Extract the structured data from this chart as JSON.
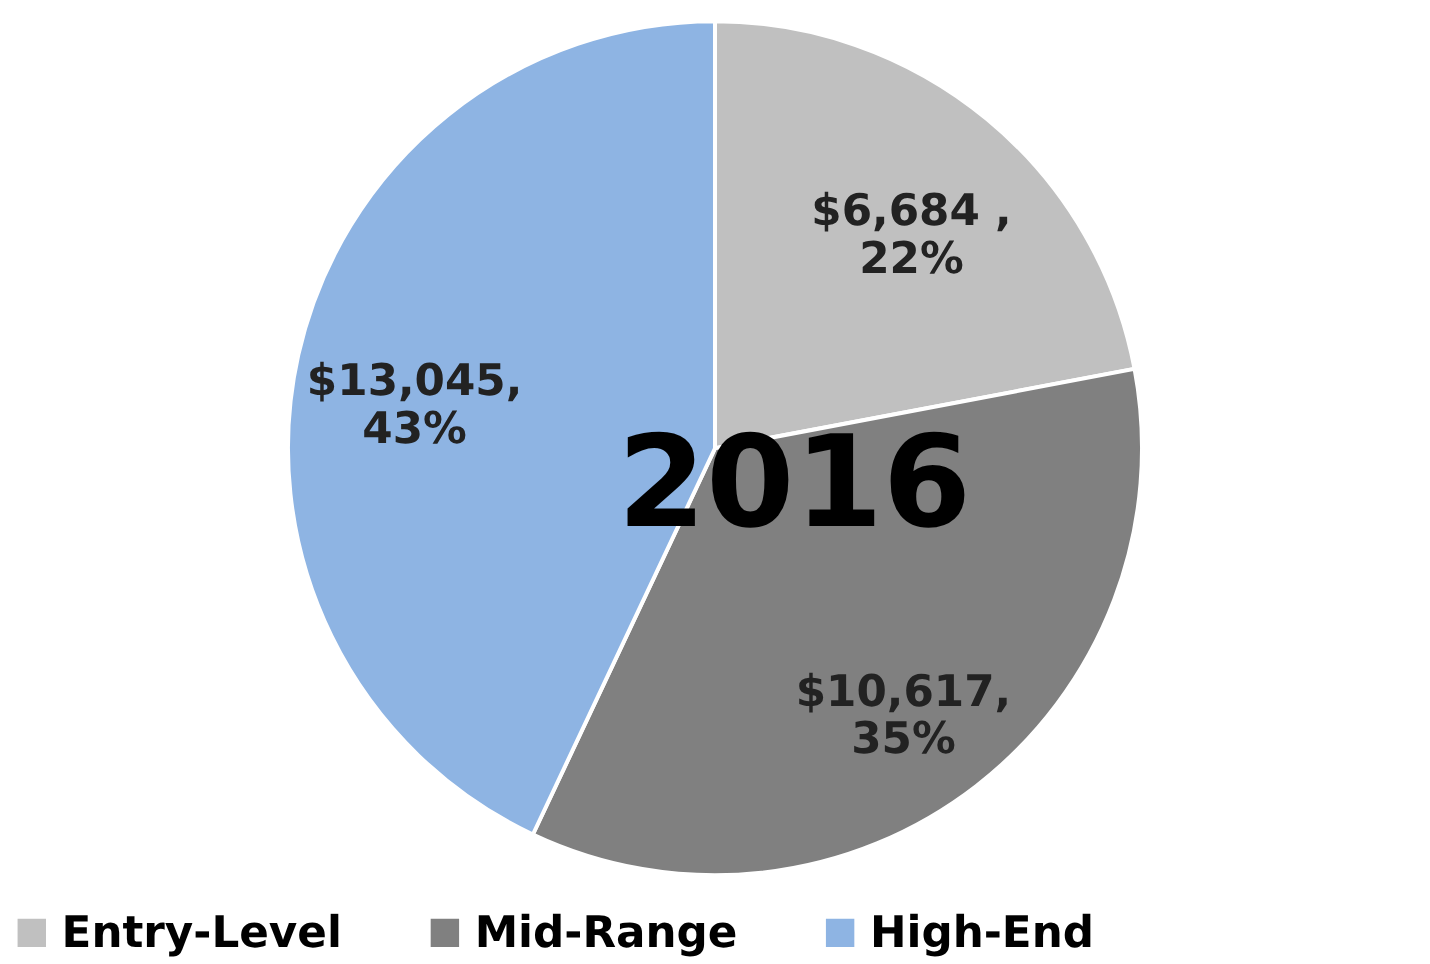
{
  "chart_data": {
    "type": "pie",
    "title": "2016",
    "categories": [
      "Entry-Level",
      "Mid-Range",
      "High-End"
    ],
    "values": [
      6684,
      10617,
      13045
    ],
    "colors": [
      "#c0c0c0",
      "#808080",
      "#8eb4e3"
    ],
    "value_labels": [
      "$6,684 ,\n22%",
      "$10,617,\n35%",
      "$13,045,\n43%"
    ],
    "legend": "bottom"
  }
}
